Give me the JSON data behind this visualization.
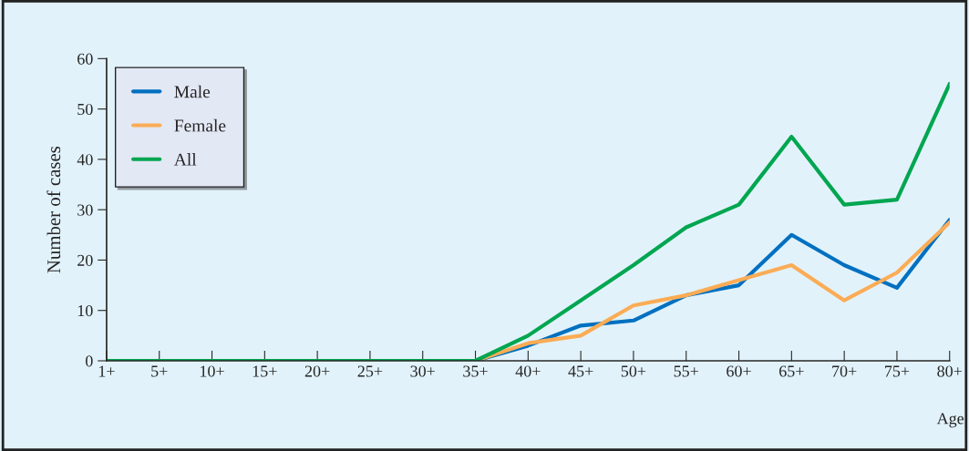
{
  "chart_data": {
    "type": "line",
    "xlabel": "Age",
    "ylabel": "Number of cases",
    "categories": [
      "1+",
      "5+",
      "10+",
      "15+",
      "20+",
      "25+",
      "30+",
      "35+",
      "40+",
      "45+",
      "50+",
      "55+",
      "60+",
      "65+",
      "70+",
      "75+",
      "80+"
    ],
    "series": [
      {
        "name": "Male",
        "color": "#0070c0",
        "values": [
          null,
          null,
          null,
          null,
          null,
          null,
          null,
          0,
          3,
          7,
          8,
          13,
          15,
          25,
          19,
          14.5,
          28
        ]
      },
      {
        "name": "Female",
        "color": "#fbac55",
        "values": [
          null,
          null,
          null,
          null,
          null,
          null,
          null,
          0,
          3.5,
          5,
          11,
          13,
          16,
          19,
          12,
          17.5,
          27.5
        ]
      },
      {
        "name": "All",
        "color": "#00a650",
        "values": [
          0,
          0,
          0,
          0,
          0,
          0,
          0,
          0,
          5,
          12,
          19,
          26.5,
          31,
          44.5,
          31,
          32,
          55
        ]
      }
    ],
    "ylim": [
      0,
      60
    ],
    "yticks": [
      0,
      10,
      20,
      30,
      40,
      50,
      60
    ],
    "grid": false,
    "legend": "top left",
    "marker": "none",
    "line_style": "solid"
  }
}
